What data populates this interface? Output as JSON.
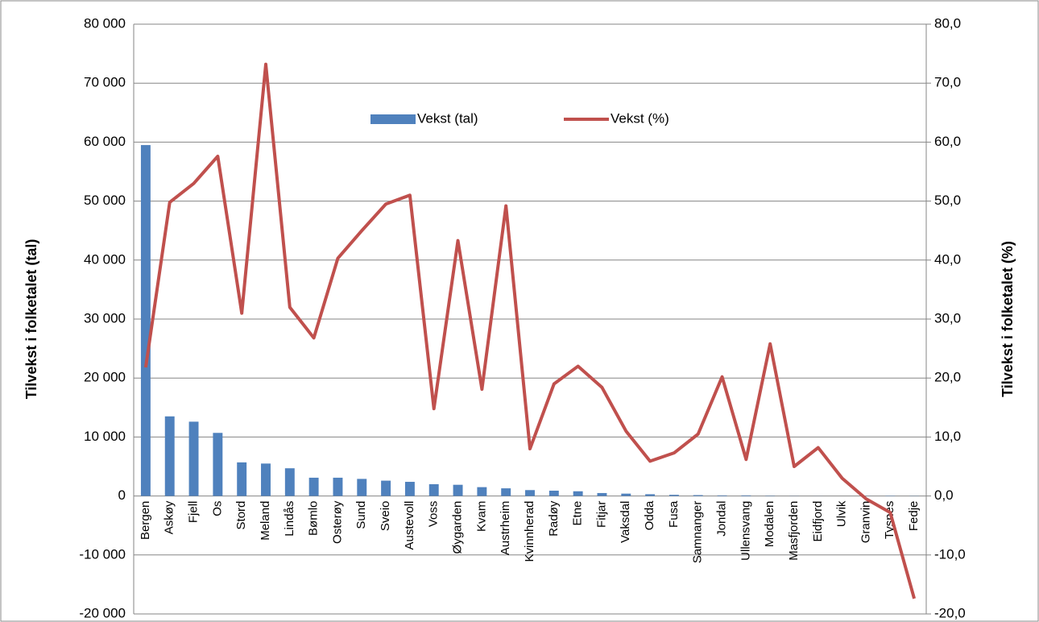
{
  "chart_data": {
    "type": "bar_line",
    "ylabel": "Tilvekst i folketalet (tal)",
    "y2label": "Tilvekst i folketalet (%)",
    "categories": [
      "Bergen",
      "Askøy",
      "Fjell",
      "Os",
      "Stord",
      "Meland",
      "Lindås",
      "Bømlo",
      "Osterøy",
      "Sund",
      "Sveio",
      "Austevoll",
      "Voss",
      "Øygarden",
      "Kvam",
      "Austrheim",
      "Kvinnherad",
      "Radøy",
      "Etne",
      "Fitjar",
      "Vaksdal",
      "Odda",
      "Fusa",
      "Samnanger",
      "Jondal",
      "Ullensvang",
      "Modalen",
      "Masfjorden",
      "Eidfjord",
      "Ulvik",
      "Granvin",
      "Tysnes",
      "Fedje"
    ],
    "series": [
      {
        "name": "Vekst (tal)",
        "color": "#4f81bd",
        "type": "bar",
        "values": [
          59500,
          13500,
          12600,
          10700,
          5700,
          5500,
          4700,
          3100,
          3100,
          2900,
          2600,
          2400,
          2000,
          1900,
          1500,
          1300,
          1000,
          900,
          800,
          500,
          400,
          300,
          200,
          150,
          100,
          100,
          50,
          20,
          10,
          0,
          -20,
          -50,
          -30
        ]
      },
      {
        "name": "Vekst (%)",
        "color": "#c0504d",
        "type": "line",
        "axis": "y2",
        "values": [
          21.8,
          49.8,
          53,
          57.6,
          31,
          73.2,
          32,
          26.8,
          40.3,
          45,
          49.5,
          51,
          14.8,
          43.3,
          18.1,
          49.2,
          8,
          19,
          22,
          18.4,
          11,
          5.9,
          7.3,
          10.5,
          20.2,
          6.2,
          25.8,
          5,
          8.2,
          3,
          -0.5,
          -2.8,
          -17.4
        ]
      }
    ],
    "ylim": [
      -20000,
      80000
    ],
    "yticks": [
      {
        "value": -20000,
        "label": "-20 000"
      },
      {
        "value": -10000,
        "label": "-10 000"
      },
      0,
      {
        "value": 10000,
        "label": "10 000"
      },
      {
        "value": 20000,
        "label": "20 000"
      },
      {
        "value": 30000,
        "label": "30 000"
      },
      {
        "value": 40000,
        "label": "40 000"
      },
      {
        "value": 50000,
        "label": "50 000"
      },
      {
        "value": 60000,
        "label": "60 000"
      },
      {
        "value": 70000,
        "label": "70 000"
      },
      {
        "value": 80000,
        "label": "80 000"
      }
    ],
    "y2lim": [
      -20,
      80
    ],
    "y2ticks": [
      {
        "value": -20,
        "label": "-20,0"
      },
      {
        "value": -10,
        "label": "-10,0"
      },
      {
        "value": 0,
        "label": "0,0"
      },
      {
        "value": 10,
        "label": "10,0"
      },
      {
        "value": 20,
        "label": "20,0"
      },
      {
        "value": 30,
        "label": "30,0"
      },
      {
        "value": 40,
        "label": "40,0"
      },
      {
        "value": 50,
        "label": "50,0"
      },
      {
        "value": 60,
        "label": "60,0"
      },
      {
        "value": 70,
        "label": "70,0"
      },
      {
        "value": 80,
        "label": "80,0"
      }
    ],
    "grid": true
  }
}
